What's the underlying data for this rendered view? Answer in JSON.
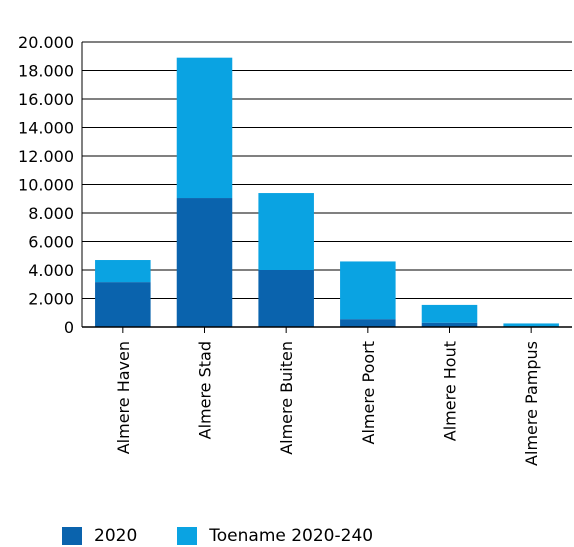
{
  "chart_data": {
    "type": "bar",
    "stacked": true,
    "categories": [
      "Almere Haven",
      "Almere Stad",
      "Almere Buiten",
      "Almere Poort",
      "Almere Hout",
      "Almere Pampus"
    ],
    "series": [
      {
        "name": "2020",
        "color": "#0a63ad",
        "values": [
          3150,
          9050,
          4000,
          550,
          300,
          0
        ]
      },
      {
        "name": "Toename 2020-240",
        "color": "#0aa3e2",
        "values": [
          1550,
          9850,
          5400,
          4050,
          1250,
          250
        ]
      }
    ],
    "ylim": [
      0,
      20000
    ],
    "yticks": [
      0,
      2000,
      4000,
      6000,
      8000,
      10000,
      12000,
      14000,
      16000,
      18000,
      20000
    ],
    "ytick_labels": [
      "0",
      "2.000",
      "4.000",
      "6.000",
      "8.000",
      "10.000",
      "12.000",
      "14.000",
      "16.000",
      "18.000",
      "20.000"
    ],
    "grid": true,
    "legend_position": "bottom-left"
  }
}
